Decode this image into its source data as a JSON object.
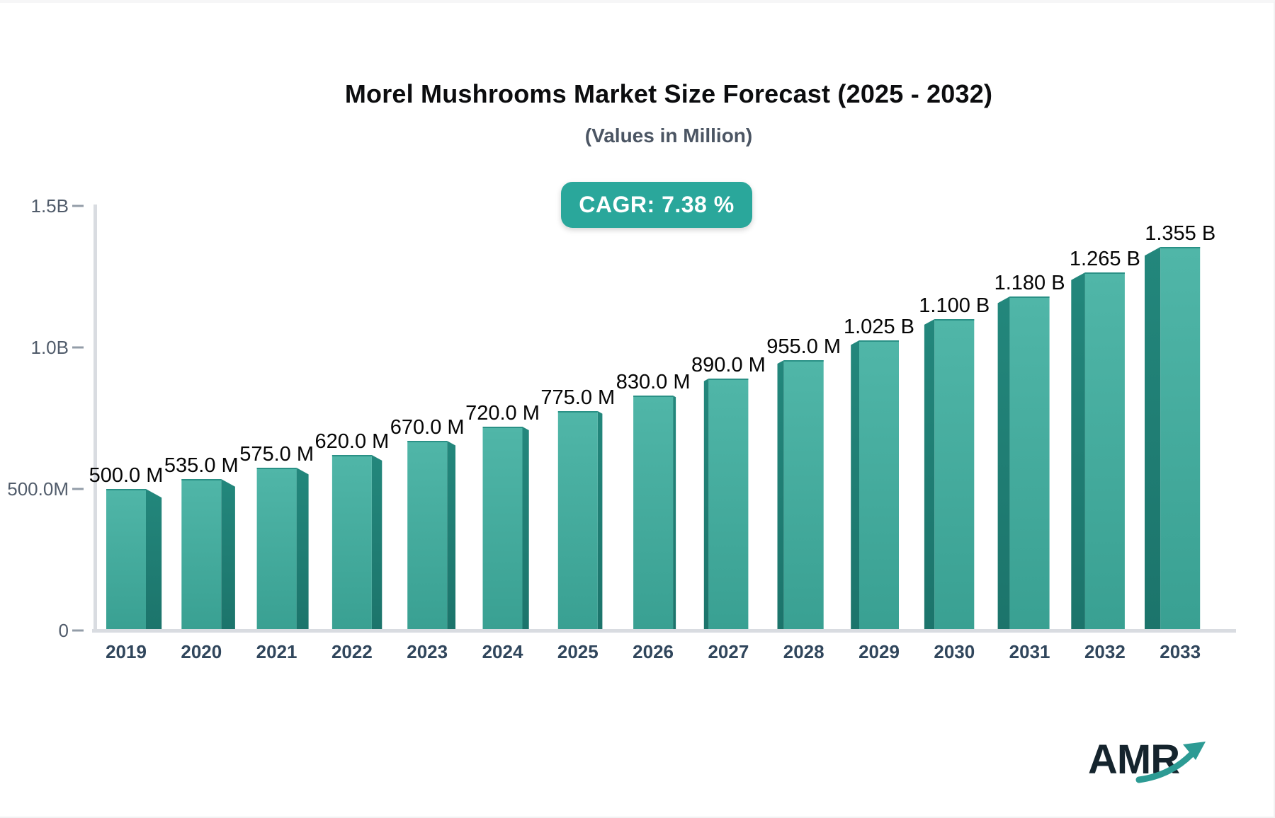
{
  "chart_data": {
    "type": "bar",
    "title": "Morel Mushrooms Market Size Forecast (2025 - 2032)",
    "subtitle": "(Values in Million)",
    "badge_label": "CAGR: 7.38 %",
    "categories": [
      "2019",
      "2020",
      "2021",
      "2022",
      "2023",
      "2024",
      "2025",
      "2026",
      "2027",
      "2028",
      "2029",
      "2030",
      "2031",
      "2032",
      "2033"
    ],
    "values": [
      500,
      535,
      575,
      620,
      670,
      720,
      775,
      830,
      890,
      955,
      1025,
      1100,
      1180,
      1265,
      1355
    ],
    "value_labels": [
      "500.0 M",
      "535.0 M",
      "575.0 M",
      "620.0 M",
      "670.0 M",
      "720.0 M",
      "775.0 M",
      "830.0 M",
      "890.0 M",
      "955.0 M",
      "1.025 B",
      "1.100 B",
      "1.180 B",
      "1.265 B",
      "1.355 B"
    ],
    "y_axis": {
      "ticks": [
        {
          "label": "1.5B",
          "value": 1500
        },
        {
          "label": "1.0B",
          "value": 1000
        },
        {
          "label": "500.0M",
          "value": 500
        },
        {
          "label": "0",
          "value": 0
        }
      ],
      "ylim": [
        0,
        1500
      ]
    },
    "grid": false,
    "legend": false
  },
  "colors": {
    "accent": "#2aa79b",
    "bar_front_top": "#50b6a8",
    "bar_front_bottom": "#39a092",
    "bar_top_edge": "#2a9186",
    "bar_side_top": "#23877c",
    "bar_side_bottom": "#1c746b",
    "axis_line": "#d9dce1",
    "tick_mark": "#939da8",
    "y_label": "#515c6b",
    "x_label": "#30465c",
    "value_label": "#060606",
    "title": "#0c0d0f",
    "subtitle": "#4b5563",
    "logo_dark": "#15242d",
    "logo_teal": "#2d9b94"
  },
  "logo": {
    "text": "AMR",
    "icon": "trend-arrow-icon"
  }
}
